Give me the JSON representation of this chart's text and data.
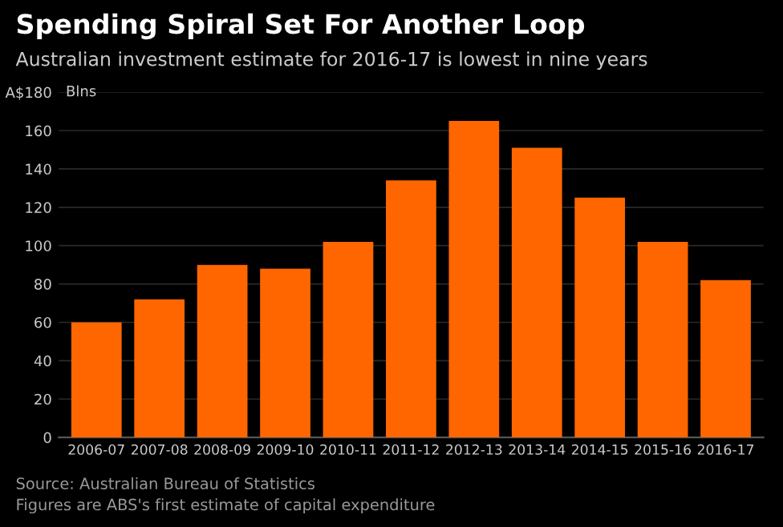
{
  "chart_data": {
    "type": "bar",
    "title": "Spending Spiral Set For Another Loop",
    "subtitle": "Australian investment estimate for 2016-17 is lowest in nine years",
    "ylabel": "Blns",
    "categories": [
      "2006-07",
      "2007-08",
      "2008-09",
      "2009-10",
      "2010-11",
      "2011-12",
      "2012-13",
      "2013-14",
      "2014-15",
      "2015-16",
      "2016-17"
    ],
    "values": [
      60,
      72,
      90,
      88,
      102,
      134,
      165,
      151,
      125,
      102,
      82
    ],
    "color": "#ff6600",
    "ylim": [
      0,
      180
    ],
    "yticks": [
      0,
      20,
      40,
      60,
      80,
      100,
      120,
      140,
      160,
      {
        "value": 180,
        "label": "A$180"
      }
    ],
    "grid": "y",
    "annotations": [
      "Source: Australian Bureau of Statistics",
      "Figures are ABS's first estimate of capital expenditure"
    ]
  }
}
